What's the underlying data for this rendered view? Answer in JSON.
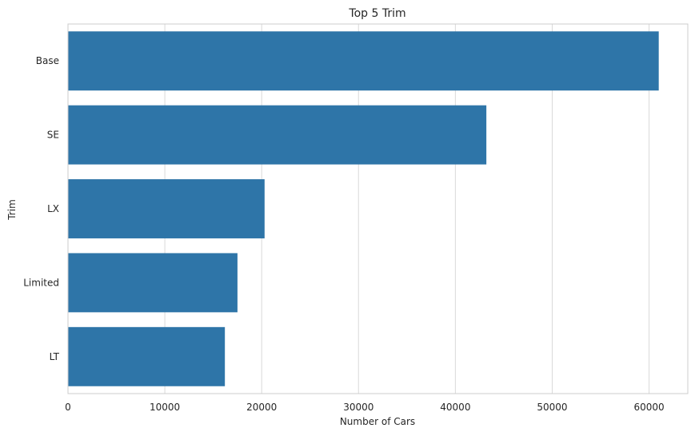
{
  "chart_data": {
    "type": "bar",
    "orientation": "horizontal",
    "title": "Top 5 Trim",
    "xlabel": "Number of Cars",
    "ylabel": "Trim",
    "categories": [
      "Base",
      "SE",
      "LX",
      "Limited",
      "LT"
    ],
    "values": [
      61000,
      43200,
      20300,
      17500,
      16200
    ],
    "xlim": [
      0,
      64000
    ],
    "xticks": [
      0,
      10000,
      20000,
      30000,
      40000,
      50000,
      60000
    ],
    "xtick_labels": [
      "0",
      "10000",
      "20000",
      "30000",
      "40000",
      "50000",
      "60000"
    ],
    "grid": "vertical",
    "bar_color": "#2e75a8",
    "grid_color": "#d9d9d9",
    "spine_color": "#cccccc",
    "text_color": "#262626"
  }
}
